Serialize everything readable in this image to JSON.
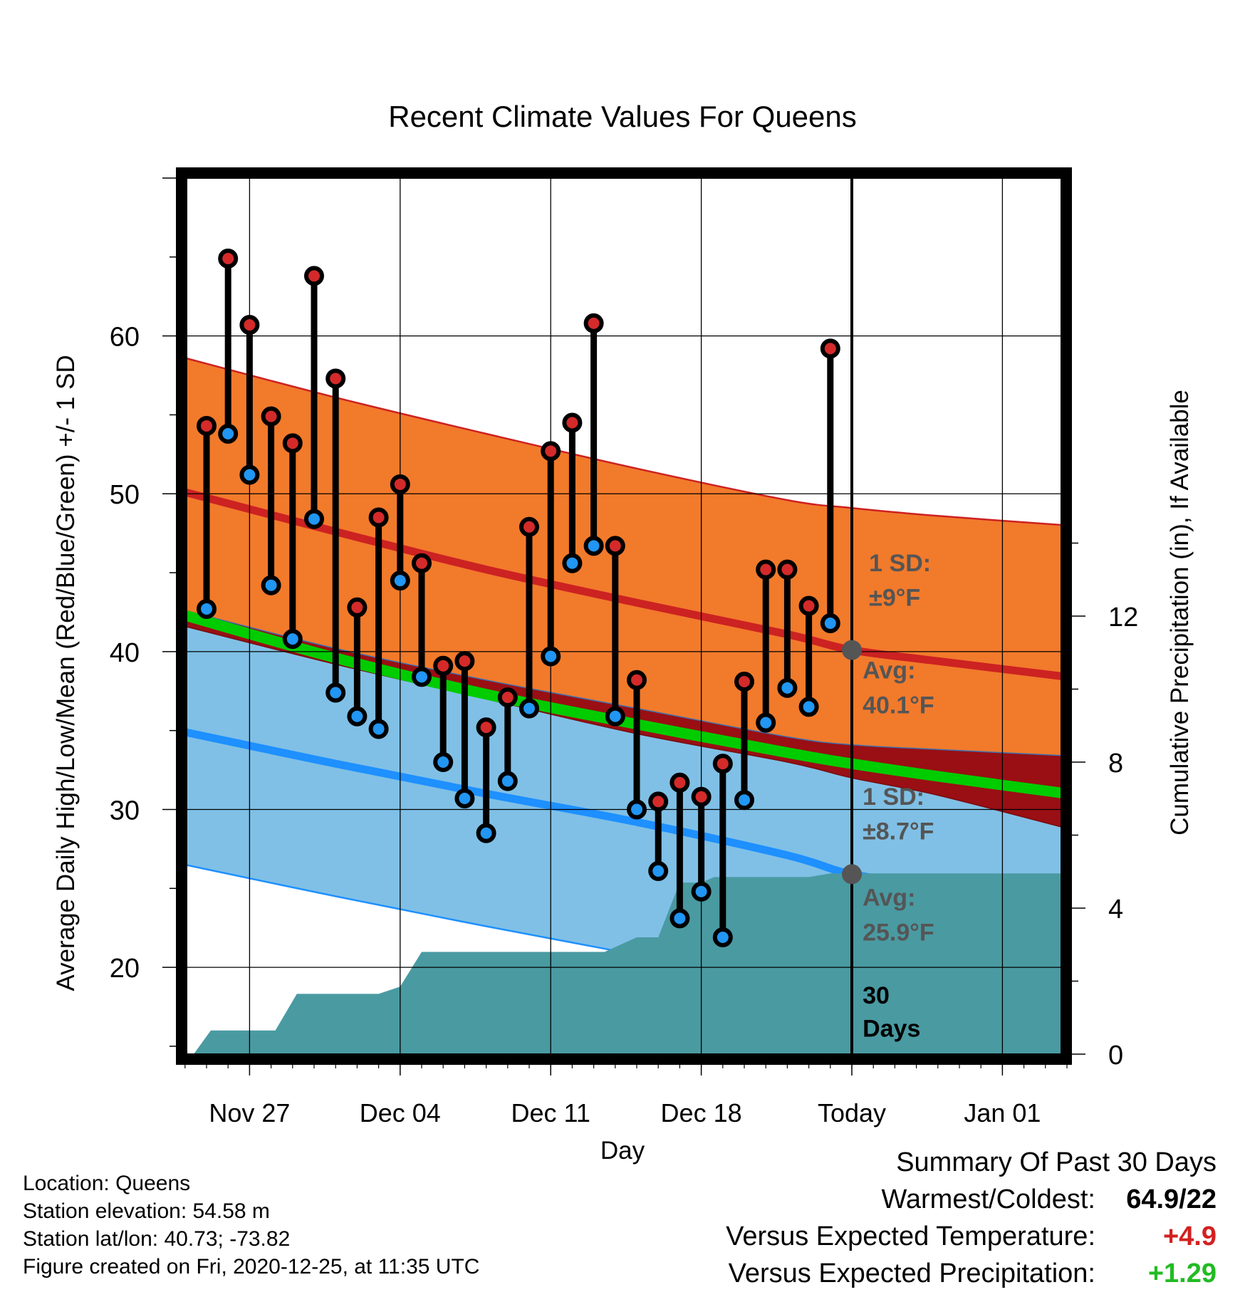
{
  "chart_data": {
    "type": "line",
    "title": "Recent Climate Values For Queens",
    "xlabel": "Day",
    "ylabel_left": "Average Daily High/Low/Mean (Red/Blue/Green) +/- 1 SD",
    "ylabel_right": "Cumulative Precipitation (in), If Available",
    "x_tick_labels": [
      "Nov 27",
      "Dec 04",
      "Dec 11",
      "Dec 18",
      "Today",
      "Jan 01"
    ],
    "y_left_ticks": [
      20,
      30,
      40,
      50,
      60
    ],
    "y_right_ticks": [
      0,
      4,
      8,
      12
    ],
    "ylim_left": [
      14.5,
      70
    ],
    "ylim_right": [
      0,
      24
    ],
    "grid": true,
    "days_since_today": [
      -30,
      -29,
      -28,
      -27,
      -26,
      -25,
      -24,
      -23,
      -22,
      -21,
      -20,
      -19,
      -18,
      -17,
      -16,
      -15,
      -14,
      -13,
      -12,
      -11,
      -10,
      -9,
      -8,
      -7,
      -6,
      -5,
      -4,
      -3,
      -2,
      -1
    ],
    "observed_high": [
      54.3,
      64.9,
      60.7,
      54.9,
      53.2,
      63.8,
      57.3,
      42.8,
      48.5,
      50.6,
      45.6,
      39.1,
      39.4,
      35.2,
      37.1,
      47.9,
      52.7,
      54.5,
      60.8,
      46.7,
      38.2,
      30.5,
      31.7,
      30.8,
      32.9,
      38.1,
      45.2,
      45.2,
      42.9,
      59.2
    ],
    "observed_low": [
      42.7,
      53.8,
      51.2,
      44.2,
      40.8,
      48.4,
      37.4,
      35.9,
      35.1,
      44.5,
      38.4,
      33.0,
      30.7,
      28.5,
      31.8,
      36.4,
      39.7,
      45.6,
      46.7,
      35.9,
      30.0,
      26.1,
      23.1,
      24.8,
      21.9,
      30.6,
      35.5,
      37.7,
      36.5,
      41.8
    ],
    "normal_curves_x": [
      -31,
      -24,
      -17,
      -10,
      -3,
      0,
      4,
      10
    ],
    "normal_high": [
      50.1,
      47.6,
      45.2,
      43.1,
      41.1,
      40.1,
      39.4,
      38.4
    ],
    "high_sd_upper": [
      58.6,
      56.1,
      53.8,
      51.6,
      49.6,
      49.1,
      48.6,
      48.0
    ],
    "high_sd_lower": [
      42.6,
      40.2,
      38.2,
      36.4,
      34.6,
      34.1,
      33.8,
      33.4
    ],
    "normal_mean": [
      42.3,
      39.6,
      37.3,
      35.4,
      33.6,
      32.9,
      32.1,
      31.0
    ],
    "normal_low": [
      34.9,
      32.9,
      31.0,
      29.2,
      27.1,
      25.9,
      25.2,
      24.5
    ],
    "low_sd_upper": [
      41.6,
      39.2,
      37.0,
      34.8,
      33.0,
      32.0,
      30.9,
      28.8
    ],
    "low_sd_lower": [
      26.5,
      24.5,
      22.6,
      20.8,
      19.1,
      18.0,
      17.2,
      16.4
    ],
    "precip_x": [
      -30.6,
      -29.8,
      -26.8,
      -25.8,
      -22.0,
      -21.0,
      -20.0,
      -19.0,
      -17.0,
      -11.5,
      -10.0,
      -9.0,
      -8.0,
      -7.0,
      -6.4,
      -5.0,
      -2.0,
      -1.0,
      10.0
    ],
    "precip_cumulative": [
      0.0,
      0.65,
      0.65,
      1.65,
      1.65,
      1.85,
      2.8,
      2.8,
      2.8,
      2.8,
      3.2,
      3.2,
      4.7,
      4.7,
      4.85,
      4.85,
      4.85,
      4.95,
      4.95
    ],
    "annotations": [
      {
        "text_line1": "1 SD:",
        "text_line2": "±9°F"
      },
      {
        "text_line1": "Avg:",
        "text_line2": "40.1°F"
      },
      {
        "text_line1": "1 SD:",
        "text_line2": "±8.7°F"
      },
      {
        "text_line1": "Avg:",
        "text_line2": "25.9°F"
      },
      {
        "text_line1": "30",
        "text_line2": "Days"
      }
    ],
    "colors": {
      "high_band": "#f27a2b",
      "high_line": "#cc2222",
      "mean_band": "#990f14",
      "mean_line": "#00cc00",
      "low_band": "#80c0e6",
      "low_line": "#1e90ff",
      "precip": "#4a9aa2",
      "high_marker": "#d42a2a",
      "low_marker": "#2196f3",
      "annotation": "#555555"
    }
  },
  "info": {
    "location": "Location: Queens",
    "elevation": "Station elevation: 54.58 m",
    "latlon": "Station lat/lon: 40.73; -73.82",
    "created": "Figure created on Fri, 2020-12-25, at 11:35 UTC"
  },
  "summary": {
    "title": "Summary Of Past 30 Days",
    "warmest_label": "Warmest/Coldest:",
    "warmest_value": "64.9/22",
    "temp_label": "Versus Expected Temperature:",
    "temp_value": "+4.9",
    "precip_label": "Versus Expected Precipitation:",
    "precip_value": "+1.29"
  }
}
